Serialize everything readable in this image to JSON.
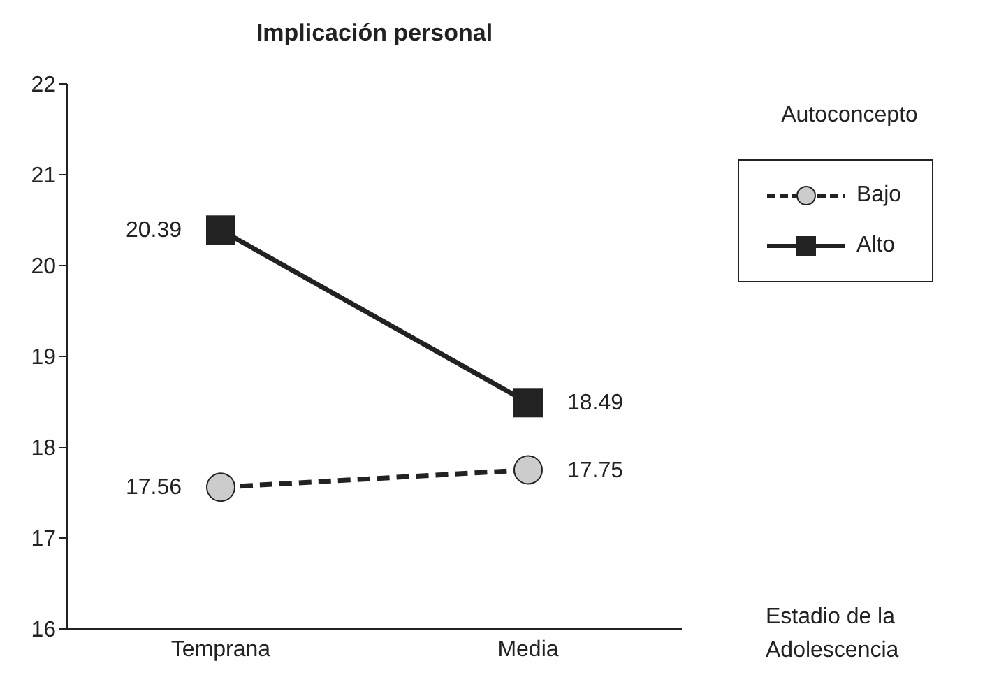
{
  "chart_data": {
    "type": "line",
    "title": "Implicación personal",
    "xlabel": "Estadio de la Adolescencia",
    "legend_title": "Autoconcepto",
    "categories": [
      "Temprana",
      "Media"
    ],
    "series": [
      {
        "name": "Bajo",
        "color": "#cccccc",
        "values": [
          17.56,
          17.75
        ],
        "marker": "circle",
        "line_style": "dashed"
      },
      {
        "name": "Alto",
        "color": "#222222",
        "values": [
          20.39,
          18.49
        ],
        "marker": "square",
        "line_style": "solid"
      }
    ],
    "ylim": [
      16,
      22
    ],
    "yticks": [
      16,
      17,
      18,
      19,
      20,
      21,
      22
    ],
    "grid": false,
    "legend": "right",
    "data_labels": true
  }
}
